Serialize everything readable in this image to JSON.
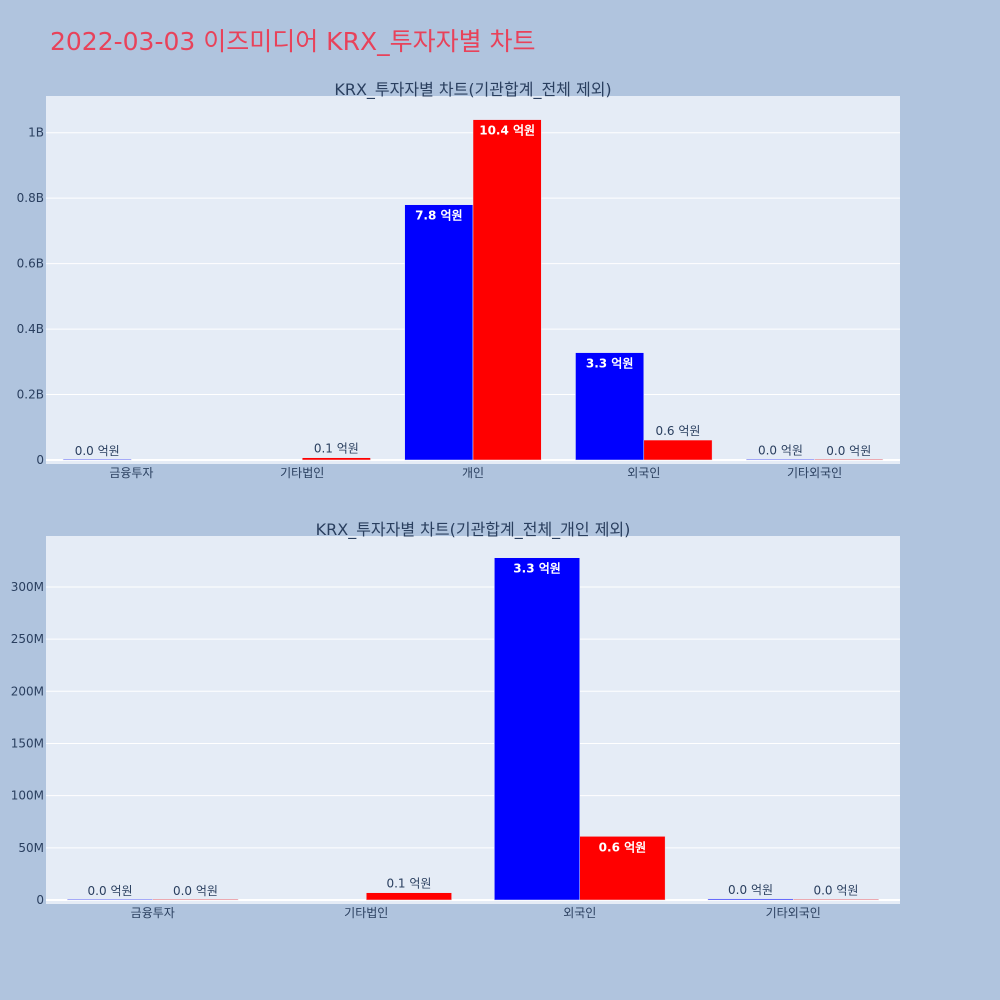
{
  "title": "2022-03-03 이즈미디어 KRX_투자자별 차트",
  "colors": {
    "page_bg": "#b0c4de",
    "plot_bg": "#e5ecf6",
    "grid": "#ffffff",
    "title": "#e8425a",
    "text": "#2a3f5f",
    "series_a": "#0000ff",
    "series_b": "#ff0000"
  },
  "chart_data": [
    {
      "type": "bar",
      "title": "KRX_투자자별 차트(기관합계_전체 제외)",
      "categories": [
        "금융투자",
        "기타법인",
        "개인",
        "외국인",
        "기타외국인"
      ],
      "series": [
        {
          "values": [
            0,
            null,
            780000000,
            328000000,
            1000000
          ],
          "labels": [
            "0.0 억원",
            "",
            "7.8 억원",
            "3.3 억원",
            "0.0 억원"
          ]
        },
        {
          "values": [
            null,
            7000000,
            1040000000,
            61000000,
            500000
          ],
          "labels": [
            "",
            "0.1 억원",
            "10.4 억원",
            "0.6 억원",
            "0.0 억원"
          ]
        }
      ],
      "ylim": [
        0,
        1100000000
      ],
      "yticks": [
        0,
        200000000,
        400000000,
        600000000,
        800000000,
        1000000000
      ],
      "ytick_labels": [
        "0",
        "0.2B",
        "0.4B",
        "0.6B",
        "0.8B",
        "1B"
      ]
    },
    {
      "type": "bar",
      "title": "KRX_투자자별 차트(기관합계_전체_개인 제외)",
      "categories": [
        "금융투자",
        "기타법인",
        "외국인",
        "기타외국인"
      ],
      "series": [
        {
          "values": [
            0,
            null,
            328000000,
            1000000
          ],
          "labels": [
            "0.0 억원",
            "",
            "3.3 억원",
            "0.0 억원"
          ]
        },
        {
          "values": [
            0,
            7000000,
            61000000,
            500000
          ],
          "labels": [
            "0.0 억원",
            "0.1 억원",
            "0.6 억원",
            "0.0 억원"
          ]
        }
      ],
      "ylim": [
        0,
        345000000
      ],
      "yticks": [
        0,
        50000000,
        100000000,
        150000000,
        200000000,
        250000000,
        300000000
      ],
      "ytick_labels": [
        "0",
        "50M",
        "100M",
        "150M",
        "200M",
        "250M",
        "300M"
      ]
    }
  ]
}
